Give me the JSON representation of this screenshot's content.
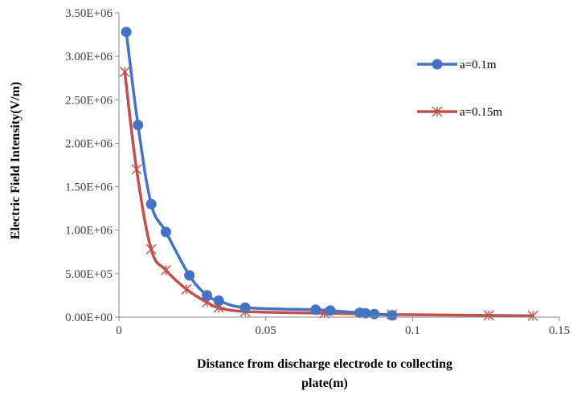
{
  "chart_data": {
    "type": "line",
    "title": "",
    "xlabel_lines": [
      "Distance from discharge electrode  to collecting",
      "plate(m)"
    ],
    "ylabel": "Electric Field Intensity(V/m)",
    "xlim": [
      0,
      0.15
    ],
    "ylim": [
      0,
      3500000
    ],
    "x_ticks": [
      {
        "value": 0,
        "label": "0"
      },
      {
        "value": 0.05,
        "label": "0.05"
      },
      {
        "value": 0.1,
        "label": "0.1"
      },
      {
        "value": 0.15,
        "label": "0.15"
      }
    ],
    "y_ticks": [
      {
        "value": 0,
        "label": "0.00E+00"
      },
      {
        "value": 500000,
        "label": "5.00E+05"
      },
      {
        "value": 1000000,
        "label": "1.00E+06"
      },
      {
        "value": 1500000,
        "label": "1.50E+06"
      },
      {
        "value": 2000000,
        "label": "2.00E+06"
      },
      {
        "value": 2500000,
        "label": "2.50E+06"
      },
      {
        "value": 3000000,
        "label": "3.00E+06"
      },
      {
        "value": 3500000,
        "label": "3.50E+06"
      }
    ],
    "grid": false,
    "legend_position": "right",
    "series": [
      {
        "name": "a=0.1m",
        "color": "#4472c4",
        "marker": "circle",
        "points": [
          [
            0.0025,
            3280000
          ],
          [
            0.0065,
            2210000
          ],
          [
            0.011,
            1300000
          ],
          [
            0.016,
            980000
          ],
          [
            0.024,
            480000
          ],
          [
            0.03,
            250000
          ],
          [
            0.034,
            190000
          ],
          [
            0.043,
            110000
          ],
          [
            0.067,
            85000
          ],
          [
            0.072,
            75000
          ],
          [
            0.082,
            50000
          ],
          [
            0.084,
            45000
          ],
          [
            0.087,
            35000
          ],
          [
            0.093,
            20000
          ]
        ]
      },
      {
        "name": "a=0.15m",
        "color": "#c0504d",
        "marker": "asterisk",
        "points": [
          [
            0.002,
            2820000
          ],
          [
            0.006,
            1700000
          ],
          [
            0.011,
            780000
          ],
          [
            0.016,
            540000
          ],
          [
            0.023,
            320000
          ],
          [
            0.03,
            170000
          ],
          [
            0.034,
            110000
          ],
          [
            0.043,
            65000
          ],
          [
            0.07,
            45000
          ],
          [
            0.093,
            30000
          ],
          [
            0.126,
            20000
          ],
          [
            0.141,
            15000
          ]
        ]
      }
    ]
  }
}
